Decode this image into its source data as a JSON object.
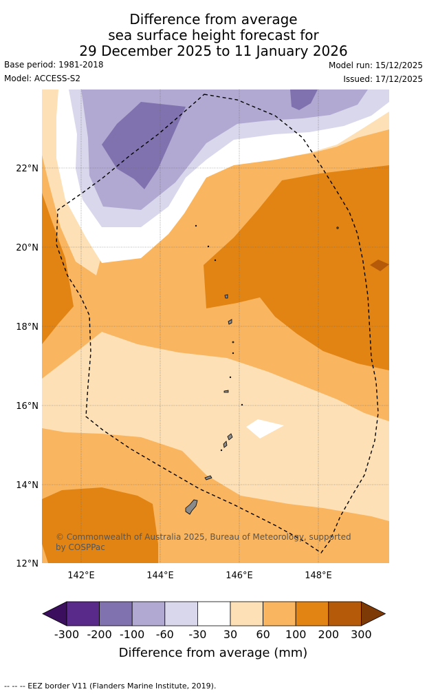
{
  "title": {
    "line1": "Difference from average",
    "line2": "sea surface height forecast for",
    "line3": "29 December 2025 to 11 January 2026"
  },
  "meta": {
    "base_period": "Base period: 1981-2018",
    "model": "Model: ACCESS-S2",
    "model_run": "Model run: 15/12/2025",
    "issued": "Issued: 17/12/2025"
  },
  "axes": {
    "lat_labels": [
      "22°N",
      "20°N",
      "18°N",
      "16°N",
      "14°N",
      "12°N"
    ],
    "lon_labels": [
      "142°E",
      "144°E",
      "146°E",
      "148°E"
    ]
  },
  "copyright": {
    "line1": "© Commonwealth of Australia 2025, Bureau of Meteorology, supported",
    "line2": "by COSPPac"
  },
  "colorbar": {
    "ticks": [
      "-300",
      "-200",
      "-100",
      "-60",
      "-30",
      "30",
      "60",
      "100",
      "200",
      "300"
    ],
    "label": "Difference from average (mm)",
    "colors": [
      "#3b0f5e",
      "#5a2a8a",
      "#8072ae",
      "#b1a9d2",
      "#d9d7eb",
      "#ffffff",
      "#fde0b5",
      "#f9b55f",
      "#e18413",
      "#b45a09",
      "#7e3a06"
    ]
  },
  "footer": "--  --  -- EEZ border V11 (Flanders Marine Institute, 2019)."
}
